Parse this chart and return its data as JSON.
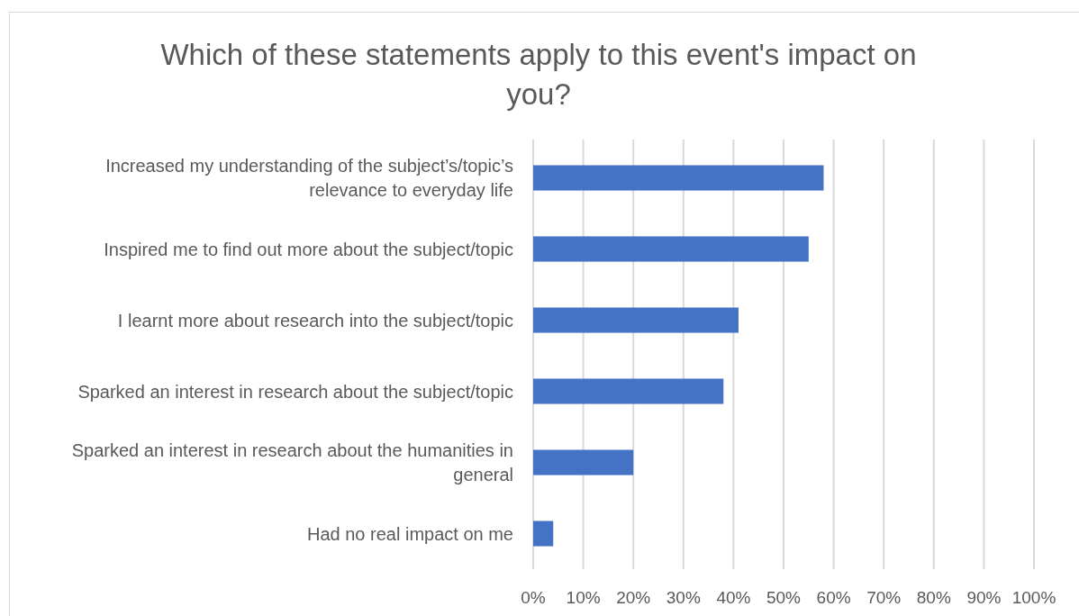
{
  "chart_data": {
    "type": "bar",
    "orientation": "horizontal",
    "title": "Which of these statements apply to this event's impact on you?",
    "categories": [
      "Increased my understanding of the subject’s/topic’s relevance to everyday life",
      "Inspired me to find out more about the subject/topic",
      "I learnt more about research into the subject/topic",
      "Sparked an interest in research about the subject/topic",
      "Sparked an interest in research about the humanities in general",
      "Had no real impact on me"
    ],
    "values": [
      58,
      55,
      41,
      38,
      20,
      4
    ],
    "color": "#4472c4",
    "xlim": [
      0,
      100
    ],
    "xticks": [
      {
        "value": 0,
        "label": "0%"
      },
      {
        "value": 10,
        "label": "10%"
      },
      {
        "value": 20,
        "label": "20%"
      },
      {
        "value": 30,
        "label": "30%"
      },
      {
        "value": 40,
        "label": "40%"
      },
      {
        "value": 50,
        "label": "50%"
      },
      {
        "value": 60,
        "label": "60%"
      },
      {
        "value": 70,
        "label": "70%"
      },
      {
        "value": 80,
        "label": "80%"
      },
      {
        "value": 90,
        "label": "90%"
      },
      {
        "value": 100,
        "label": "100%"
      }
    ],
    "grid": "x"
  }
}
